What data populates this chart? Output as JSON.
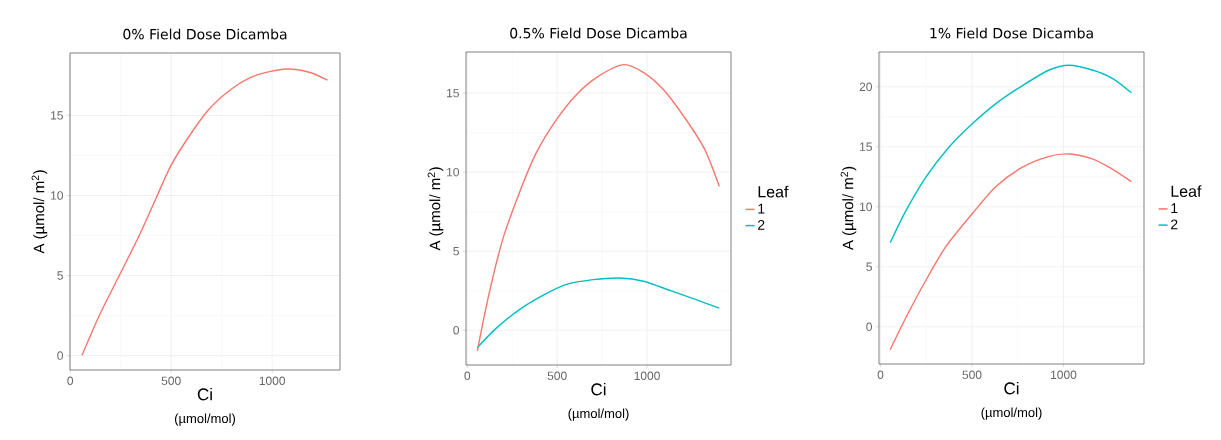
{
  "chart_data": [
    {
      "type": "line",
      "title": "0% Field Dose Dicamba",
      "xlabel": "Ci",
      "ylabel": "A (µmol/ m$^{2}$)",
      "annotations": [
        "(µmol/mol)"
      ],
      "xlim": [
        -1,
        1336
      ],
      "ylim": [
        -0.9,
        18.9
      ],
      "xticks": [
        0,
        500,
        1000
      ],
      "yticks": [
        0,
        5,
        10,
        15
      ],
      "grid": true,
      "legend": false,
      "series": [
        {
          "color": "#f8766d",
          "x": [
            58,
            144,
            243,
            342,
            424,
            500,
            589,
            688,
            804,
            919,
            1068,
            1183,
            1274
          ],
          "values": [
            0,
            2.5,
            5,
            7.5,
            9.8,
            11.9,
            13.7,
            15.4,
            16.7,
            17.5,
            17.9,
            17.7,
            17.2
          ]
        }
      ]
    },
    {
      "type": "line",
      "title": "0.5% Field Dose Dicamba",
      "xlabel": "Ci",
      "ylabel": "A (µmol/ m$^{2}$)",
      "annotations": [
        "(µmol/mol)"
      ],
      "xlim": [
        -7,
        1467
      ],
      "ylim": [
        -2.2,
        17.6
      ],
      "xticks": [
        0,
        500,
        1000
      ],
      "yticks": [
        0,
        5,
        10,
        15
      ],
      "grid": true,
      "legend": "right",
      "legend_title": "Leaf",
      "series": [
        {
          "name": "1",
          "color": "#f8766d",
          "x": [
            56,
            121,
            196,
            290,
            383,
            495,
            607,
            720,
            869,
            981,
            1093,
            1206,
            1318,
            1402
          ],
          "values": [
            -1.3,
            2.3,
            5.7,
            8.7,
            11.2,
            13.3,
            14.9,
            16,
            16.8,
            16.3,
            15.2,
            13.5,
            11.5,
            9.1
          ]
        },
        {
          "name": "2",
          "color": "#00bfc4",
          "x": [
            56,
            159,
            290,
            421,
            551,
            701,
            850,
            981,
            1131,
            1280,
            1402
          ],
          "values": [
            -1.1,
            0.1,
            1.3,
            2.2,
            2.9,
            3.2,
            3.3,
            3.1,
            2.5,
            1.9,
            1.4
          ]
        }
      ]
    },
    {
      "type": "line",
      "title": "1% Field Dose Dicamba",
      "xlabel": "Ci",
      "ylabel": "A (µmol/ m$^{2}$)",
      "annotations": [
        "(µmol/mol)"
      ],
      "xlim": [
        -8,
        1440
      ],
      "ylim": [
        -3.1,
        22.9
      ],
      "xticks": [
        0,
        500,
        1000
      ],
      "yticks": [
        0,
        5,
        10,
        15,
        20
      ],
      "grid": true,
      "legend": "right",
      "legend_title": "Leaf",
      "series": [
        {
          "name": "1",
          "color": "#f8766d",
          "x": [
            53,
            140,
            249,
            358,
            500,
            631,
            776,
            922,
            1031,
            1158,
            1249,
            1371
          ],
          "values": [
            -1.9,
            0.8,
            3.9,
            6.7,
            9.4,
            11.7,
            13.3,
            14.2,
            14.4,
            14,
            13.3,
            12.1
          ]
        },
        {
          "name": "2",
          "color": "#00bfc4",
          "x": [
            53,
            140,
            249,
            376,
            500,
            631,
            776,
            922,
            1031,
            1158,
            1267,
            1371
          ],
          "values": [
            7,
            9.7,
            12.5,
            15,
            16.9,
            18.6,
            20.1,
            21.4,
            21.8,
            21.4,
            20.7,
            19.5
          ]
        }
      ]
    }
  ]
}
